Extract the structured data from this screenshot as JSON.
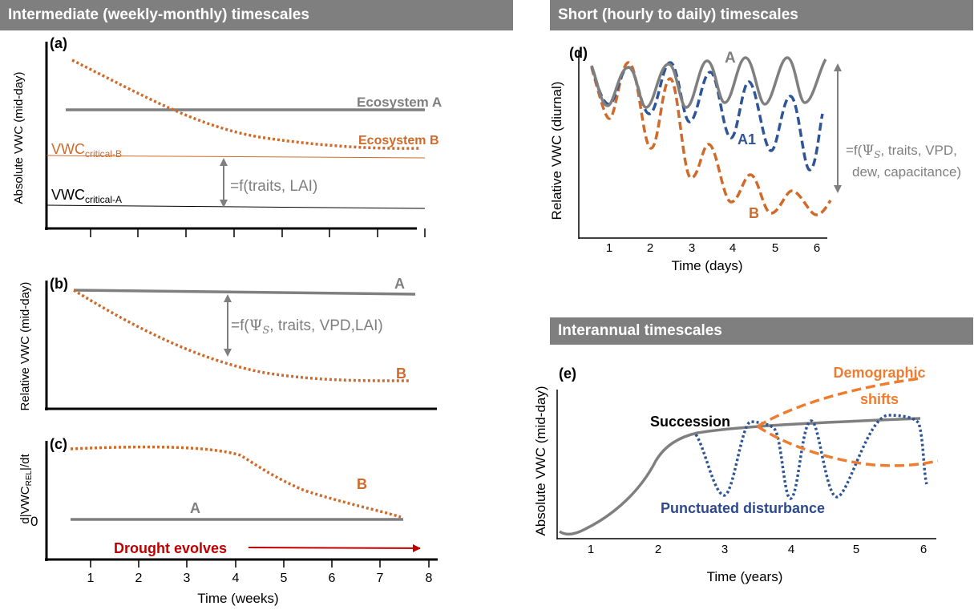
{
  "headers": {
    "intermediate": "Intermediate (weekly-monthly) timescales",
    "short": "Short (hourly to daily) timescales",
    "interannual": "Interannual timescales"
  },
  "colors": {
    "grey": "#7f7f7f",
    "orange": "#d06a2a",
    "blue": "#2f5597",
    "bright_orange": "#ee7d31",
    "red": "#c00000",
    "dark_blue": "#2e4a8e"
  },
  "panel_a": {
    "letter": "(a)",
    "ylabel": "Absolute VWC (mid-day)",
    "ecosystem_a": "Ecosystem A",
    "ecosystem_b": "Ecosystem B",
    "vwc": "VWC",
    "critical_b_sub": "critical-B",
    "critical_a_sub": "critical-A",
    "annotation": "=f(traits, LAI)"
  },
  "panel_b": {
    "letter": "(b)",
    "ylabel": "Relative VWC (mid-day)",
    "label_a": "A",
    "label_b": "B",
    "annotation_pre": "=f(",
    "annotation_psi": "Ψ",
    "annotation_s": "S",
    "annotation_post": ", traits, VPD,LAI)"
  },
  "panel_c": {
    "letter": "(c)",
    "ylabel_pre": "d|VWC",
    "ylabel_sub": "REL",
    "ylabel_post": "|/dt",
    "zero": "0",
    "label_a": "A",
    "label_b": "B",
    "drought": "Drought evolves",
    "xlabel": "Time (weeks)",
    "xticks": [
      "1",
      "2",
      "3",
      "4",
      "5",
      "6",
      "7",
      "8"
    ]
  },
  "panel_d": {
    "letter": "(d)",
    "ylabel": "Relative VWC (diurnal)",
    "xlabel": "Time (days)",
    "xticks": [
      "1",
      "2",
      "3",
      "4",
      "5",
      "6"
    ],
    "label_a": "A",
    "label_a1": "A1",
    "label_b": "B",
    "annotation_line1_pre": "=f(",
    "annotation_psi": "Ψ",
    "annotation_s": "S",
    "annotation_line1_post": ", traits, VPD,",
    "annotation_line2": "dew, capacitance)"
  },
  "panel_e": {
    "letter": "(e)",
    "ylabel": "Absolute VWC (mid-day)",
    "xlabel": "Time (years)",
    "xticks": [
      "1",
      "2",
      "3",
      "4",
      "5",
      "6"
    ],
    "succession": "Succession",
    "demographic_1": "Demographic",
    "demographic_2": "shifts",
    "disturbance": "Punctuated disturbance"
  }
}
